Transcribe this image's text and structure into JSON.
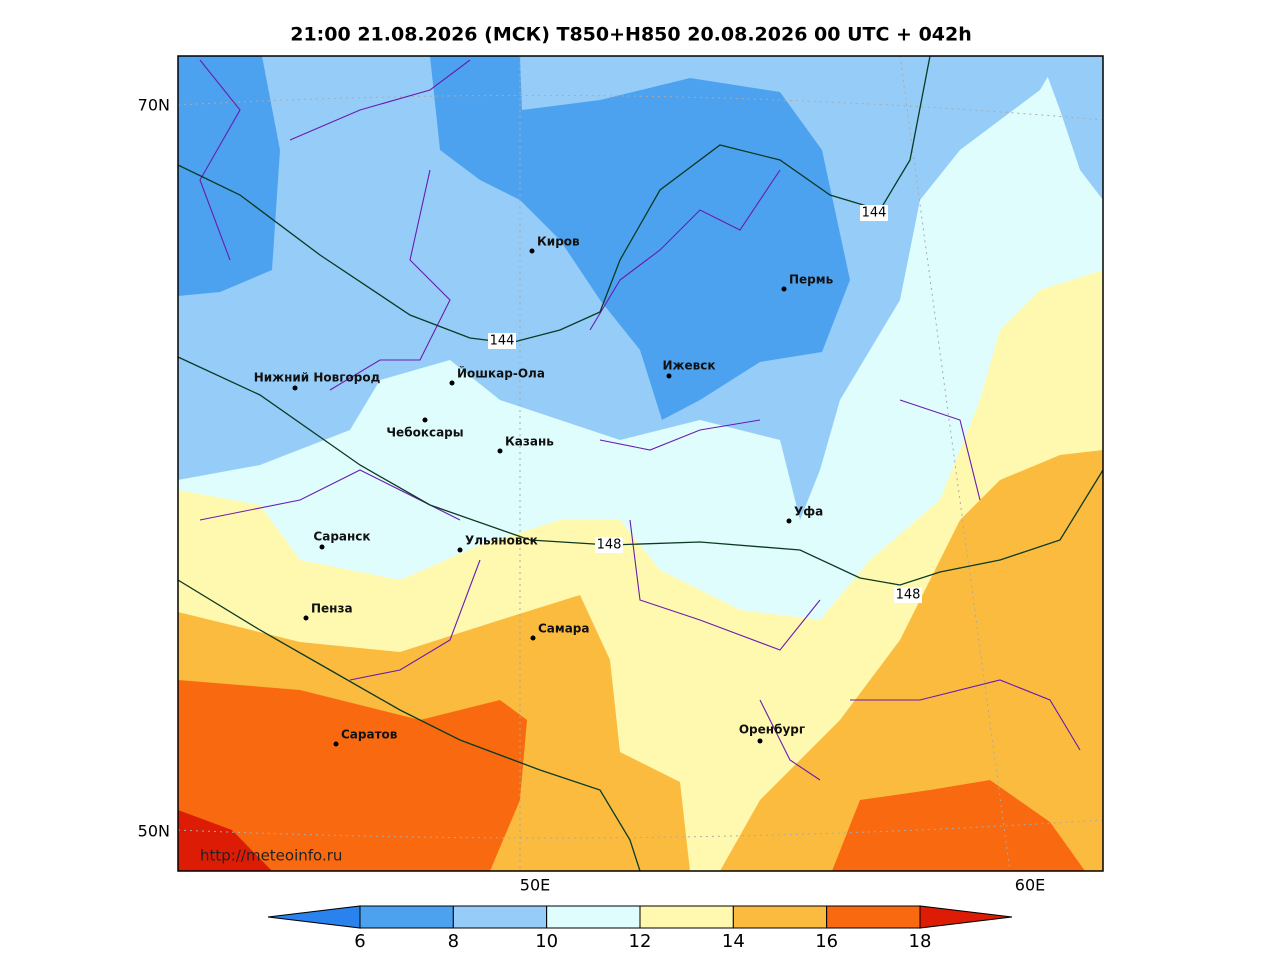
{
  "title": "21:00 21.08.2026 (МСК) T850+H850 20.08.2026 00 UTC + 042h",
  "lat_labels": [
    "70N",
    "50N"
  ],
  "lon_labels": [
    "50E",
    "60E"
  ],
  "cities": [
    "Киров",
    "Пермь",
    "Нижний Новгород",
    "Йошкар-Ола",
    "Ижевск",
    "Чебоксары",
    "Казань",
    "Уфа",
    "Саранск",
    "Ульяновск",
    "Пенза",
    "Самара",
    "Оренбург",
    "Саратов"
  ],
  "contour_labels": [
    144,
    144,
    148,
    148
  ],
  "watermark": "http://meteoinfo.ru",
  "colorbar": {
    "ticks": [
      6,
      8,
      10,
      12,
      14,
      16,
      18
    ],
    "colors": [
      "#2a82ee",
      "#4da2f0",
      "#96cdf8",
      "#e0fdfe",
      "#fff9b0",
      "#fbbb3f",
      "#f96a10",
      "#dd1c05"
    ]
  }
}
